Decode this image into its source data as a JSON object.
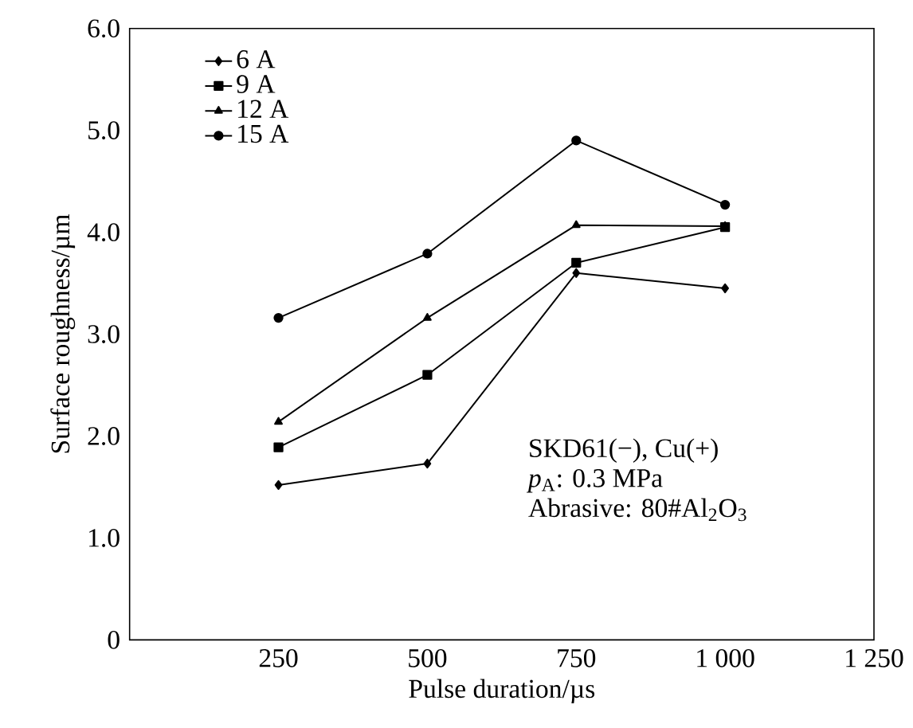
{
  "chart_data": {
    "type": "line",
    "xlabel": "Pulse duration/µs",
    "ylabel": "Surface roughness/µm",
    "x": [
      250,
      500,
      750,
      1000
    ],
    "series": [
      {
        "name": "6 A",
        "color": "#000000",
        "marker": "diamond",
        "values": [
          1.52,
          1.73,
          3.6,
          3.45
        ]
      },
      {
        "name": "9 A",
        "color": "#000000",
        "marker": "square",
        "values": [
          1.89,
          2.6,
          3.7,
          4.05
        ]
      },
      {
        "name": "12 A",
        "color": "#000000",
        "marker": "triangle",
        "values": [
          2.14,
          3.16,
          4.07,
          4.06
        ]
      },
      {
        "name": "15 A",
        "color": "#000000",
        "marker": "circle",
        "values": [
          3.16,
          3.79,
          4.9,
          4.27
        ]
      }
    ],
    "xlim": [
      0,
      1250
    ],
    "xticks": [
      250,
      500,
      750,
      {
        "value": 1000,
        "label": "1 000"
      },
      {
        "value": 1250,
        "label": "1 250"
      }
    ],
    "ylim": [
      0,
      6
    ],
    "yticks": [
      0,
      {
        "value": 1,
        "label": "1.0"
      },
      {
        "value": 2,
        "label": "2.0"
      },
      {
        "value": 3,
        "label": "3.0"
      },
      {
        "value": 4,
        "label": "4.0"
      },
      {
        "value": 5,
        "label": "5.0"
      },
      {
        "value": 6,
        "label": "6.0"
      }
    ],
    "grid": false,
    "legend": "top left",
    "line_style": "solid",
    "annotations": [
      "SKD61(−), Cu(+)",
      "*p*$_{A}$: 0.3 MPa",
      "Abrasive: 80#Al$_{2}$O$_{3}$"
    ]
  }
}
